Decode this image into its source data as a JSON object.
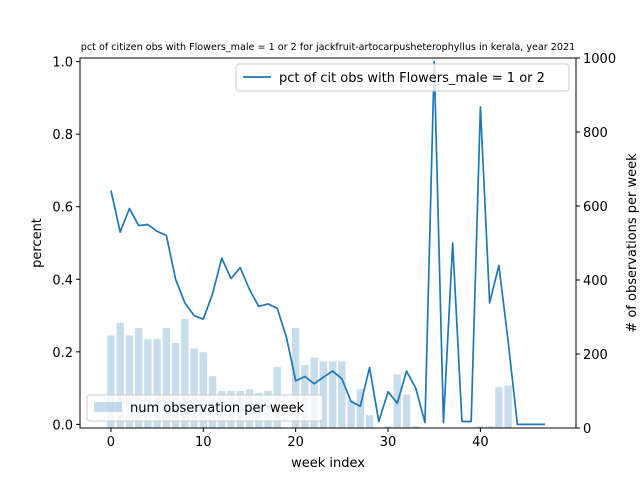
{
  "chart_data": {
    "type": "bar+line",
    "title": "pct of citizen obs with Flowers_male = 1 or 2 for jackfruit-artocarpusheterophyllus in kerala, year 2021",
    "xlabel": "week index",
    "ylabel_left": "percent",
    "ylabel_right": "# of observations per week",
    "xlim": [
      -3.35,
      50.35
    ],
    "ylim_left": [
      -0.01,
      1.01
    ],
    "ylim_right": [
      0,
      1000
    ],
    "xticks": [
      0,
      10,
      20,
      30,
      40
    ],
    "yticks_left": [
      0.0,
      0.2,
      0.4,
      0.6,
      0.8,
      1.0
    ],
    "yticks_right": [
      0,
      200,
      400,
      600,
      800,
      1000
    ],
    "legend_line": "pct of cit obs with Flowers_male = 1 or 2",
    "legend_bar": "num observation per week",
    "line_legend_position": "upper right",
    "bar_legend_position": "lower left",
    "colors": {
      "line": "#1f77b4",
      "bar": "#1f77b4",
      "bar_alpha": 0.25
    },
    "line_series": {
      "x": [
        0,
        1,
        2,
        3,
        4,
        5,
        6,
        7,
        8,
        9,
        10,
        11,
        12,
        13,
        14,
        15,
        16,
        17,
        18,
        19,
        20,
        21,
        22,
        23,
        24,
        25,
        26,
        27,
        28,
        29,
        30,
        31,
        32,
        33,
        34,
        35,
        36,
        37,
        38,
        39,
        40,
        41,
        42,
        43,
        44,
        45,
        46,
        47
      ],
      "y": [
        0.645,
        0.53,
        0.595,
        0.548,
        0.551,
        0.532,
        0.521,
        0.4,
        0.335,
        0.3,
        0.29,
        0.36,
        0.458,
        0.402,
        0.432,
        0.372,
        0.325,
        0.332,
        0.32,
        0.24,
        0.12,
        0.132,
        0.112,
        0.13,
        0.147,
        0.126,
        0.063,
        0.05,
        0.157,
        0.008,
        0.09,
        0.058,
        0.147,
        0.1,
        0.005,
        1.0,
        0.005,
        0.5,
        0.008,
        0.008,
        0.875,
        0.335,
        0.438,
        0.23,
        0.0,
        0.0,
        0.0,
        0.0
      ]
    },
    "bar_series": {
      "x": [
        0,
        1,
        2,
        3,
        4,
        5,
        6,
        7,
        8,
        9,
        10,
        11,
        12,
        13,
        14,
        15,
        16,
        17,
        18,
        19,
        20,
        21,
        22,
        23,
        24,
        25,
        26,
        27,
        28,
        29,
        30,
        31,
        32,
        33,
        34,
        35,
        36,
        37,
        38,
        39,
        40,
        41,
        42,
        43,
        44,
        45,
        46,
        47
      ],
      "values": [
        250,
        285,
        250,
        270,
        240,
        240,
        270,
        230,
        295,
        215,
        205,
        140,
        100,
        100,
        100,
        105,
        95,
        100,
        165,
        0,
        270,
        170,
        190,
        180,
        180,
        180,
        75,
        105,
        35,
        0,
        5,
        145,
        90,
        5,
        0,
        0,
        0,
        0,
        0,
        0,
        5,
        5,
        110,
        115,
        0,
        0,
        0,
        0
      ]
    }
  }
}
